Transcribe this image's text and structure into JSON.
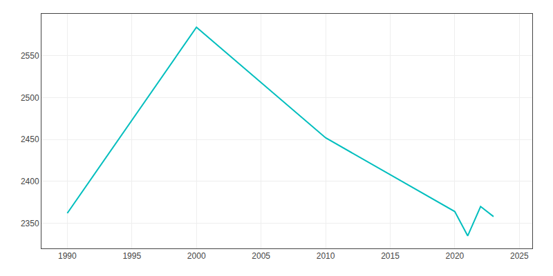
{
  "chart_data": {
    "type": "line",
    "x": [
      1990,
      2000,
      2010,
      2020,
      2021,
      2022,
      2023
    ],
    "values": [
      2362,
      2584,
      2452,
      2364,
      2335,
      2370,
      2358
    ],
    "color": "#00BEBE",
    "xlim": [
      1988,
      2026
    ],
    "ylim": [
      2320,
      2600
    ],
    "xticks": [
      1990,
      1995,
      2000,
      2005,
      2010,
      2015,
      2020,
      2025
    ],
    "yticks": [
      2350,
      2400,
      2450,
      2500,
      2550
    ],
    "grid": true
  }
}
